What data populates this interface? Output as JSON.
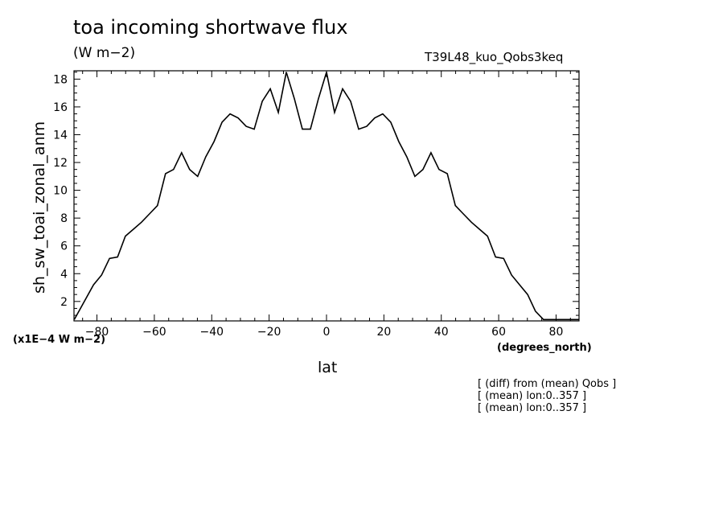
{
  "title": "toa incoming shortwave flux",
  "units": "(W m−2)",
  "run_label": "T39L48_kuo_Qobs3keq",
  "scale_note": "(x1E−4 W m−2)",
  "x_units": "(degrees_north)",
  "notes": [
    "[ (diff) from (mean) Qobs ]",
    "[ (mean) lon:0..357 ]",
    "[ (mean) lon:0..357 ]"
  ],
  "chart_data": {
    "type": "line",
    "xlabel": "lat",
    "ylabel": "sh_sw_toai_zonal_anm",
    "xlim": [
      -88,
      88
    ],
    "ylim": [
      0.6,
      18.6
    ],
    "xticks": [
      -80,
      -60,
      -40,
      -20,
      0,
      20,
      40,
      60,
      80
    ],
    "yticks": [
      2,
      4,
      6,
      8,
      10,
      12,
      14,
      16,
      18
    ],
    "grid": false,
    "series": [
      {
        "x": [
          -87.9,
          -81.2,
          -78.4,
          -75.6,
          -72.8,
          -70.1,
          -67.3,
          -64.5,
          -61.7,
          -58.9,
          -56.1,
          -53.3,
          -50.5,
          -47.7,
          -44.9,
          -42.1,
          -39.2,
          -36.4,
          -33.6,
          -30.8,
          -28,
          -25.2,
          -22.4,
          -19.6,
          -16.8,
          -14,
          -11.2,
          -8.4,
          -5.6,
          -2.8,
          0,
          2.8,
          5.6,
          8.4,
          11.2,
          14,
          16.8,
          19.6,
          22.4,
          25.2,
          28,
          30.8,
          33.6,
          36.4,
          39.2,
          42.1,
          44.9,
          47.7,
          50.5,
          53.3,
          56.1,
          58.9,
          61.7,
          64.5,
          67.3,
          70.1,
          72.8,
          75.6,
          78.4,
          81.2,
          87.9
        ],
        "y": [
          0.7,
          3.2,
          3.9,
          5.1,
          5.2,
          6.7,
          7.2,
          7.7,
          8.3,
          8.9,
          11.2,
          11.5,
          12.7,
          11.5,
          11.0,
          12.4,
          13.5,
          14.9,
          15.5,
          15.2,
          14.6,
          14.4,
          16.4,
          17.3,
          15.6,
          18.5,
          16.6,
          14.4,
          14.4,
          16.6,
          18.5,
          15.6,
          17.3,
          16.4,
          14.4,
          14.6,
          15.2,
          15.5,
          14.9,
          13.5,
          12.4,
          11.0,
          11.5,
          12.7,
          11.5,
          11.2,
          8.9,
          8.3,
          7.7,
          7.2,
          6.7,
          5.2,
          5.1,
          3.9,
          3.2,
          2.5,
          1.3,
          0.7,
          0.7,
          0.7,
          0.7
        ]
      }
    ]
  }
}
